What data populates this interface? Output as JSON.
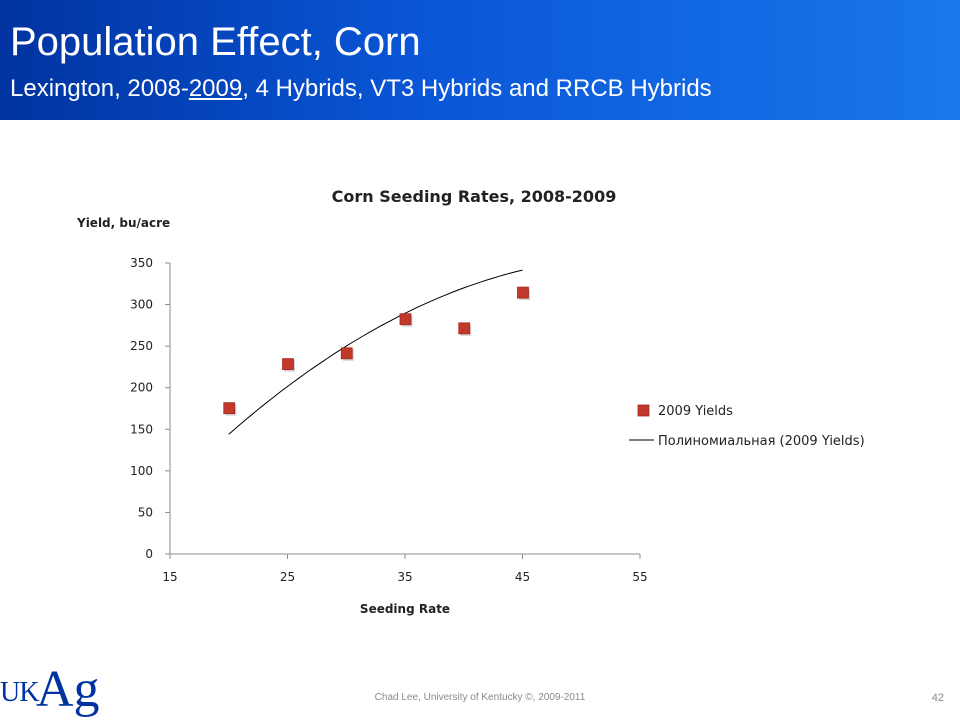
{
  "slide": {
    "title": "Population Effect, Corn",
    "subtitle_a": "Lexington, 2008-",
    "subtitle_b": "2009",
    "subtitle_c": ", 4 Hybrids, VT3 Hybrids and RRCB Hybrids",
    "footer": "Chad Lee, University of Kentucky ©, 2009-2011",
    "page_number": "42",
    "logo": {
      "uk": "UK",
      "ag": "Ag"
    }
  },
  "colors": {
    "header_start": "#0033a0",
    "header_end": "#1a77ec",
    "marker": "#c0392b",
    "trendline": "#000000",
    "axis": "#8c8c8c"
  },
  "chart_data": {
    "type": "scatter",
    "title": "Corn Seeding Rates, 2008-2009",
    "xlabel": "Seeding Rate",
    "ylabel": "Yield, bu/acre",
    "xlim": [
      15,
      55
    ],
    "ylim": [
      0,
      350
    ],
    "x_ticks": [
      15,
      25,
      35,
      45,
      55
    ],
    "y_ticks": [
      0,
      50,
      100,
      150,
      200,
      250,
      300,
      350
    ],
    "grid": false,
    "legend_position": "right",
    "series": [
      {
        "name": "2009 Yields",
        "kind": "markers",
        "points": [
          [
            20,
            176
          ],
          [
            25,
            229
          ],
          [
            30,
            242
          ],
          [
            35,
            283
          ],
          [
            40,
            272
          ],
          [
            45,
            315
          ]
        ]
      },
      {
        "name": "Полиномиальная (2009 Yields)",
        "kind": "trendline",
        "x_range": [
          20,
          45
        ],
        "coefficients": [
          -0.18,
          19.6,
          -176
        ]
      }
    ]
  }
}
